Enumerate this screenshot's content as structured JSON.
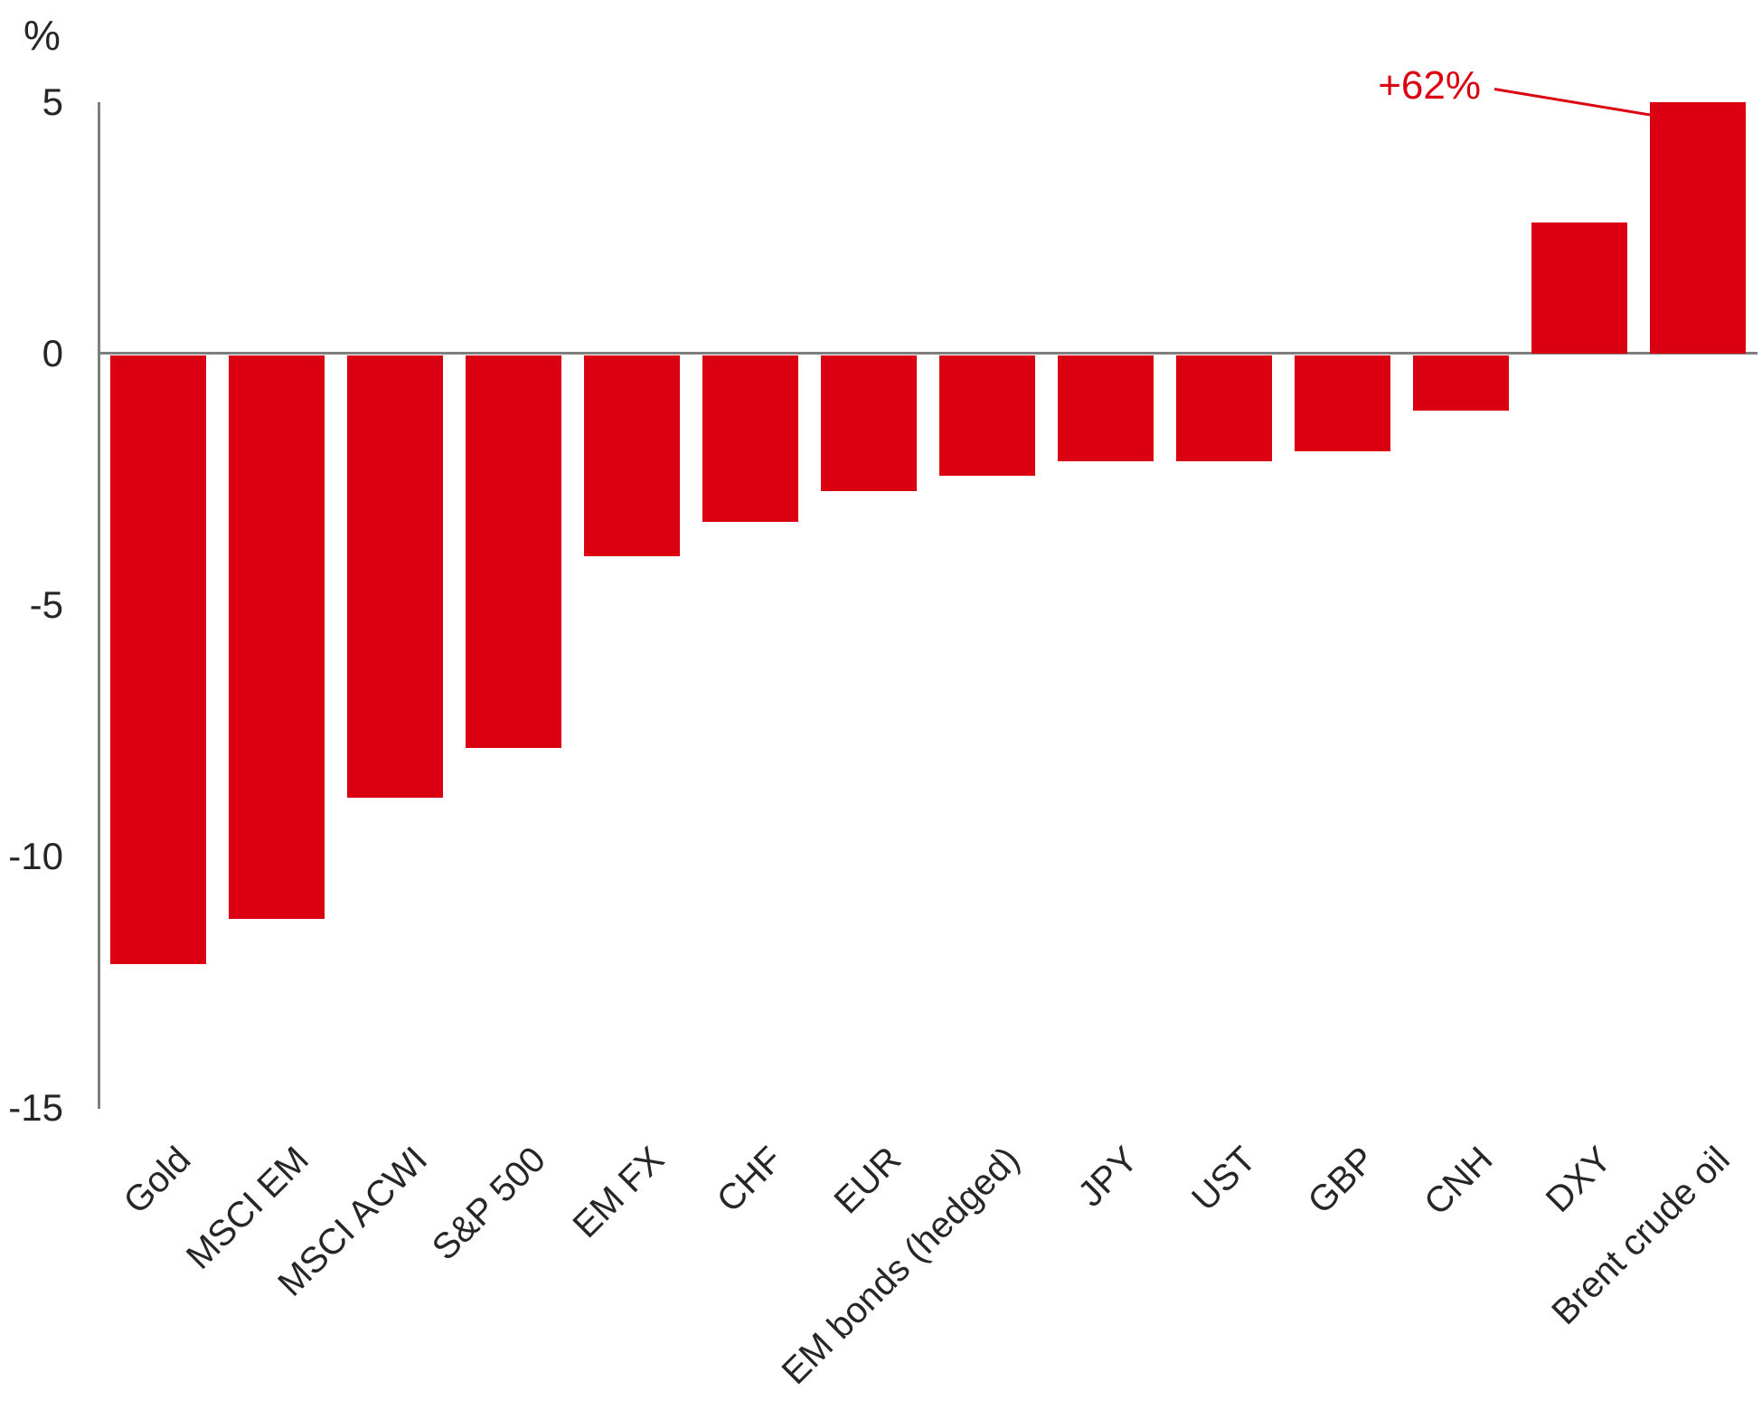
{
  "chart_data": {
    "type": "bar",
    "title": "",
    "ylabel": "%",
    "unit_label": "%",
    "categories": [
      "Gold",
      "MSCI EM",
      "MSCI ACWI",
      "S&P 500",
      "EM FX",
      "CHF",
      "EUR",
      "EM bonds (hedged)",
      "JPY",
      "UST",
      "GBP",
      "CNH",
      "DXY",
      "Brent crude oil"
    ],
    "values": [
      -12.1,
      -11.2,
      -8.8,
      -7.8,
      -4.0,
      -3.3,
      -2.7,
      -2.4,
      -2.1,
      -2.1,
      -1.9,
      -1.1,
      2.6,
      62
    ],
    "yticks": [
      5,
      0,
      -5,
      -10,
      -15
    ],
    "ylim": [
      -15,
      5
    ],
    "clip_max": 5,
    "grid": "off",
    "legend": "none",
    "annotation": {
      "text": "+62%",
      "target_category": "Brent crude oil"
    },
    "colors": {
      "bar": "#db0011",
      "annotation": "#db0011",
      "axis": "#7f7f7f",
      "text": "#262626"
    }
  }
}
